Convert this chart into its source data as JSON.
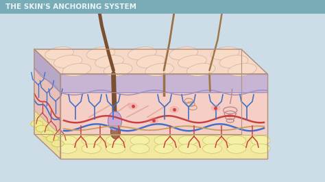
{
  "title": "THE SKIN'S ANCHORING SYSTEM",
  "title_color": "#e8f4f8",
  "title_bg": "#7aacb8",
  "bg_color": "#ccdde8",
  "skin_top_color": "#f5d8c5",
  "epidermis_color": "#c8b5d5",
  "dermis_color": "#f2c8c0",
  "hypodermis_color": "#f0e8a0",
  "hair_color": "#7a5030",
  "vessel_red": "#c84040",
  "vessel_blue": "#4070c8",
  "nerve_tan": "#c8a060"
}
